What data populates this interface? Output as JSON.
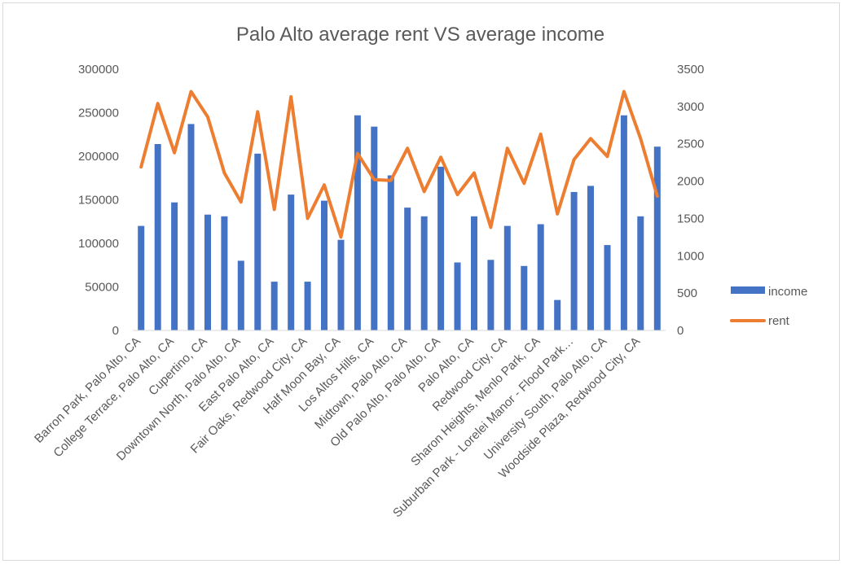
{
  "chart_data": {
    "type": "bar",
    "title": "Palo Alto average rent VS average income",
    "categories": [
      "Barron Park, Palo Alto, CA",
      "",
      "College Terrace, Palo Alto, CA",
      "",
      "Cupertino, CA",
      "",
      "Downtown North, Palo Alto, CA",
      "",
      "East Palo Alto, CA",
      "",
      "Fair Oaks, Redwood City, CA",
      "",
      "Half Moon Bay, CA",
      "",
      "Los Altos Hills, CA",
      "",
      "Midtown, Palo Alto, CA",
      "",
      "Old Palo Alto, Palo Alto, CA",
      "",
      "Palo Alto, CA",
      "",
      "Redwood City, CA",
      "",
      "Sharon Heights, Menlo Park, CA",
      "",
      "Suburban Park - Lorelei Manor - Flood Park…",
      "",
      "University South, Palo Alto, CA",
      "",
      "Woodside Plaza, Redwood City, CA",
      ""
    ],
    "series": [
      {
        "name": "income",
        "type": "bar",
        "axis": "left",
        "color": "#4472c4",
        "values": [
          120000,
          214000,
          147000,
          237000,
          133000,
          131000,
          80000,
          203000,
          56000,
          156000,
          56000,
          149000,
          104000,
          247000,
          234000,
          178000,
          141000,
          131000,
          188000,
          78000,
          131000,
          81000,
          120000,
          74000,
          122000,
          35000,
          159000,
          166000,
          98000,
          247000,
          131000,
          211000
        ]
      },
      {
        "name": "rent",
        "type": "line",
        "axis": "right",
        "color": "#ed7d31",
        "values": [
          2190,
          3040,
          2380,
          3200,
          2860,
          2110,
          1720,
          2930,
          1620,
          3130,
          1500,
          1950,
          1250,
          2370,
          2020,
          2010,
          2440,
          1860,
          2320,
          1820,
          2110,
          1380,
          2440,
          1970,
          2630,
          1560,
          2290,
          2570,
          2330,
          3200,
          2570,
          1800
        ]
      }
    ],
    "y_left": {
      "lim": [
        0,
        300000
      ],
      "ticks": [
        "0",
        "50000",
        "100000",
        "150000",
        "200000",
        "250000",
        "300000"
      ]
    },
    "y_right": {
      "lim": [
        0,
        3500
      ],
      "ticks": [
        "0",
        "500",
        "1000",
        "1500",
        "2000",
        "2500",
        "3000",
        "3500"
      ]
    },
    "grid": false,
    "legend": {
      "position": "right",
      "entries": [
        "income",
        "rent"
      ]
    }
  }
}
